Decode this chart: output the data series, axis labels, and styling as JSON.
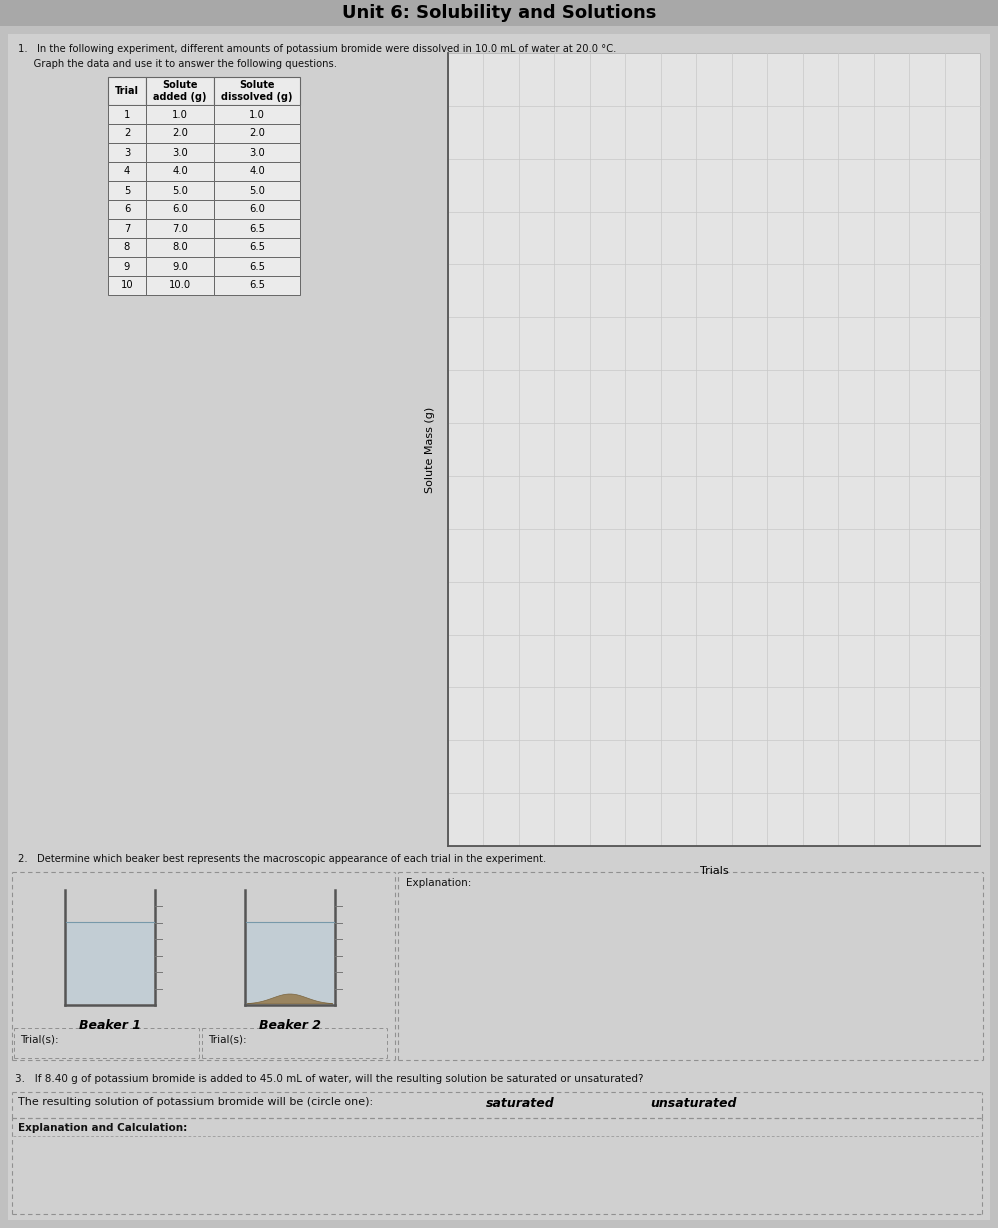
{
  "title": "Unit 6: Solubility and Solutions",
  "page_bg": "#c0c0c0",
  "content_bg": "#d0d0d0",
  "header_bg": "#a8a8a8",
  "q1_line1": "1.   In the following experiment, different amounts of potassium bromide were dissolved in 10.0 mL of water at 20.0 °C.",
  "q1_line2": "     Graph the data and use it to answer the following questions.",
  "table_headers": [
    "Trial",
    "Solute\nadded (g)",
    "Solute\ndissolved (g)"
  ],
  "table_trials": [
    1,
    2,
    3,
    4,
    5,
    6,
    7,
    8,
    9,
    10
  ],
  "table_added": [
    "1.0",
    "2.0",
    "3.0",
    "4.0",
    "5.0",
    "6.0",
    "7.0",
    "8.0",
    "9.0",
    "10.0"
  ],
  "table_dissolved": [
    "1.0",
    "2.0",
    "3.0",
    "4.0",
    "5.0",
    "6.0",
    "6.5",
    "6.5",
    "6.5",
    "6.5"
  ],
  "graph_ylabel": "Solute Mass (g)",
  "graph_xlabel": "Trials",
  "q2_text": "2.   Determine which beaker best represents the macroscopic appearance of each trial in the experiment.",
  "beaker1_label": "Beaker 1",
  "beaker2_label": "Beaker 2",
  "trials_label": "Trial(s):",
  "explanation_label": "Explanation:",
  "q3_text": "3.   If 8.40 g of potassium bromide is added to 45.0 mL of water, will the resulting solution be saturated or unsaturated?",
  "q3_answer_prefix": "The resulting solution of potassium bromide will be (circle one):",
  "q3_saturated": "saturated",
  "q3_unsaturated": "unsaturated",
  "q3_calc_label": "Explanation and Calculation:",
  "grid_color": "#c8c8c8",
  "table_line_color": "#666666",
  "dash_color": "#909090",
  "text_color": "#111111"
}
